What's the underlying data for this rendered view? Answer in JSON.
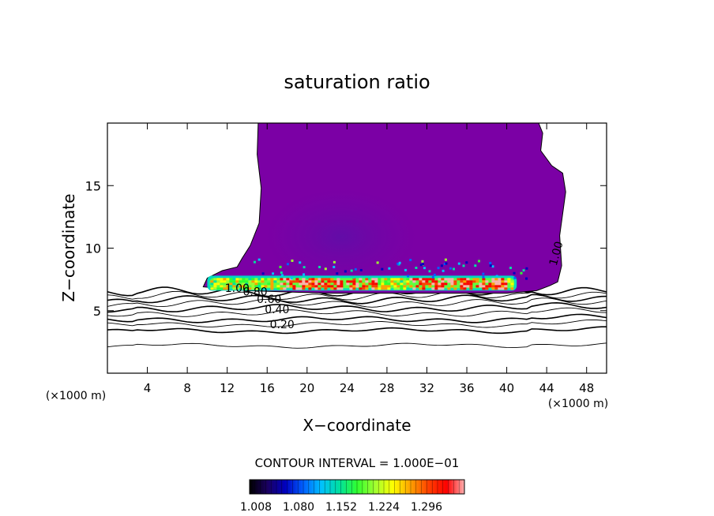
{
  "chart_data": {
    "type": "heatmap",
    "title": "saturation ratio",
    "xlabel": "X−coordinate",
    "ylabel": "Z−coordinate",
    "x_unit_left": "(×1000 m)",
    "x_unit_right": "(×1000 m)",
    "xlim": [
      0,
      50
    ],
    "ylim": [
      0,
      20
    ],
    "x_ticks": [
      4,
      8,
      12,
      16,
      20,
      24,
      28,
      32,
      36,
      40,
      44,
      48
    ],
    "y_ticks": [
      5,
      10,
      15
    ],
    "contour_interval_text": "CONTOUR INTERVAL = 1.000E−01",
    "contour_levels": [
      0.1,
      0.2,
      0.3,
      0.4,
      0.5,
      0.6,
      0.7,
      0.8,
      0.9,
      1.0
    ],
    "contour_line_labels": [
      {
        "text": "0.20",
        "x": 17.5,
        "y": 3.6
      },
      {
        "text": "0.40",
        "x": 17.0,
        "y": 4.8
      },
      {
        "text": "0.60",
        "x": 16.2,
        "y": 5.6
      },
      {
        "text": "0.80",
        "x": 14.8,
        "y": 6.2
      },
      {
        "text": "1.00",
        "x": 13.0,
        "y": 6.5
      },
      {
        "text": "1.00",
        "x": 45.3,
        "y": 9.5
      }
    ],
    "contour_base_heights": [
      2.2,
      3.4,
      3.9,
      4.3,
      4.8,
      5.2,
      5.6,
      5.9,
      6.2,
      6.5
    ],
    "cloud_region_outline": [
      [
        15.1,
        20
      ],
      [
        15.0,
        17.5
      ],
      [
        15.4,
        14.8
      ],
      [
        15.2,
        12.0
      ],
      [
        14.3,
        10.2
      ],
      [
        13.5,
        9.2
      ],
      [
        13.0,
        8.5
      ],
      [
        11.5,
        8.2
      ],
      [
        10.0,
        7.6
      ],
      [
        9.6,
        6.9
      ],
      [
        14.0,
        6.6
      ],
      [
        22.0,
        6.4
      ],
      [
        40.0,
        6.4
      ],
      [
        43.0,
        6.6
      ],
      [
        44.3,
        7.0
      ],
      [
        45.1,
        7.3
      ],
      [
        45.5,
        8.6
      ],
      [
        45.3,
        11.0
      ],
      [
        45.9,
        14.5
      ],
      [
        45.6,
        16.0
      ],
      [
        44.5,
        16.6
      ],
      [
        43.4,
        17.8
      ],
      [
        43.6,
        19.2
      ],
      [
        43.2,
        20
      ]
    ],
    "cloud_fill_color": "#7b00a5",
    "high_ratio_band": {
      "x_range": [
        10.0,
        41.0
      ],
      "z_range": [
        6.6,
        7.8
      ]
    },
    "colorbar": {
      "colors": [
        "#000000",
        "#1a0060",
        "#0000c0",
        "#0060ff",
        "#00c0ff",
        "#00e0a0",
        "#30ff30",
        "#a0ff30",
        "#ffff00",
        "#ffa000",
        "#ff4000",
        "#ff0000",
        "#ffb0b0"
      ],
      "tick_labels": [
        "1.008",
        "1.080",
        "1.152",
        "1.224",
        "1.296"
      ]
    }
  }
}
